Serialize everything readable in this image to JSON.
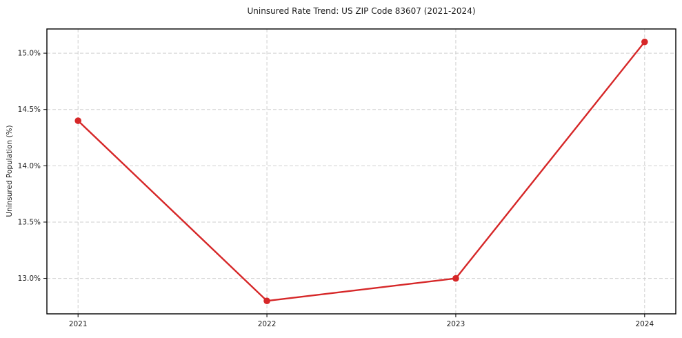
{
  "figure": {
    "title": "Uninsured Rate Trend: US ZIP Code 83607 (2021-2024)"
  },
  "chart_data": {
    "type": "line",
    "title": "Uninsured Rate Trend: US ZIP Code 83607 (2021-2024)",
    "xlabel": "",
    "ylabel": "Uninsured Population (%)",
    "x": [
      2021,
      2022,
      2023,
      2024
    ],
    "x_tick_labels": [
      "2021",
      "2022",
      "2023",
      "2024"
    ],
    "series": [
      {
        "name": "Uninsured Population (%)",
        "values": [
          14.4,
          12.8,
          13.0,
          15.1
        ],
        "color": "#d62728",
        "marker": "circle"
      }
    ],
    "y_ticks": [
      {
        "value": 13.0,
        "label": "13.0%"
      },
      {
        "value": 13.5,
        "label": "13.5%"
      },
      {
        "value": 14.0,
        "label": "14.0%"
      },
      {
        "value": 14.5,
        "label": "14.5%"
      },
      {
        "value": 15.0,
        "label": "15.0%"
      }
    ],
    "xlim": [
      2020.835,
      2024.165
    ],
    "ylim": [
      12.685,
      15.215
    ],
    "grid": true,
    "grid_style": "dashed",
    "legend": "none",
    "colors": {
      "line": "#d62728",
      "grid": "#cfcfcf",
      "spine": "#000000",
      "background": "#ffffff",
      "text": "#1a1a1a"
    }
  }
}
